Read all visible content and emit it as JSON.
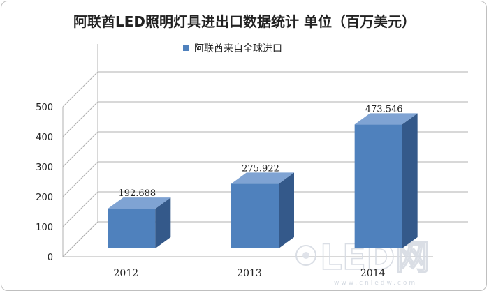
{
  "chart_data": {
    "type": "bar",
    "title": "阿联酋LED照明灯具进出口数据统计 单位（百万美元）",
    "xlabel": "",
    "ylabel": "",
    "categories": [
      "2012",
      "2013",
      "2014"
    ],
    "series": [
      {
        "name": "阿联酋来自全球进口",
        "values": [
          192.688,
          275.922,
          473.546
        ],
        "labels": [
          "192.688",
          "275.922",
          "473.546"
        ]
      }
    ],
    "ylim": [
      0,
      500
    ],
    "yticks": [
      0,
      100,
      200,
      300,
      400,
      500
    ],
    "grid": true,
    "three_d": true,
    "legend": "top-center"
  },
  "colors": {
    "bar_front": "#4f81bd",
    "bar_top": "#7fa3d3",
    "bar_side": "#34598a",
    "grid": "#b0b0b0",
    "legend_swatch": "#4f81bd"
  },
  "watermark": {
    "main": "LED网",
    "sub": "www.cnledw.com"
  }
}
